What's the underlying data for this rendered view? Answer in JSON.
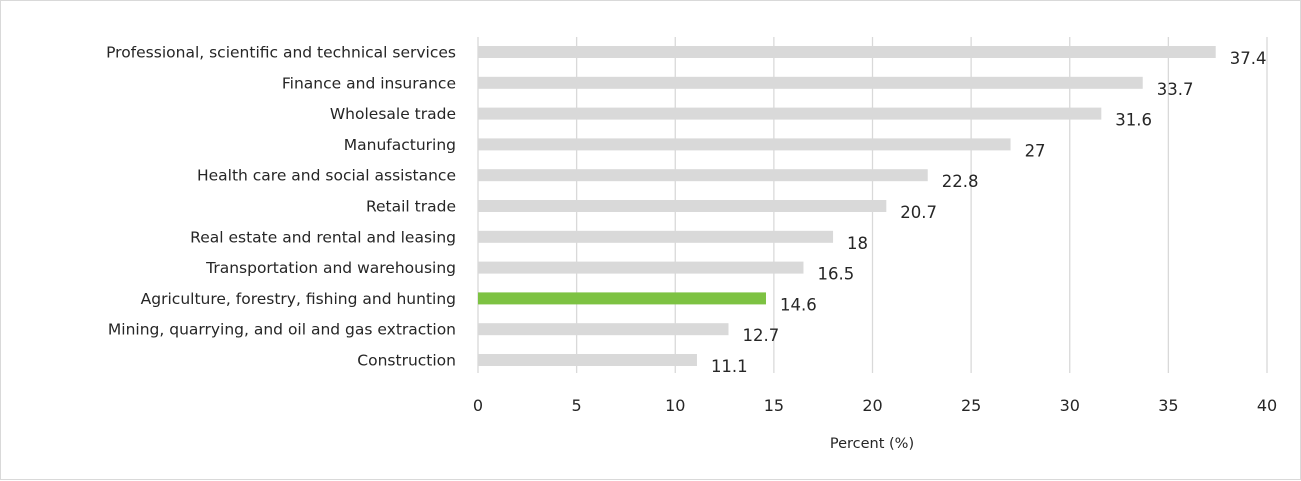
{
  "chart_data": {
    "type": "bar",
    "orientation": "horizontal",
    "categories": [
      "Professional, scientific and technical services",
      "Finance and insurance",
      "Wholesale trade",
      "Manufacturing",
      "Health care and social assistance",
      "Retail trade",
      "Real estate and rental and leasing",
      "Transportation and warehousing",
      "Agriculture, forestry, fishing and hunting",
      "Mining, quarrying, and oil and gas extraction",
      "Construction"
    ],
    "values": [
      37.4,
      33.7,
      31.6,
      27,
      22.8,
      20.7,
      18,
      16.5,
      14.6,
      12.7,
      11.1
    ],
    "data_labels": [
      "37.4",
      "33.7",
      "31.6",
      "27",
      "22.8",
      "20.7",
      "18",
      "16.5",
      "14.6",
      "12.7",
      "11.1"
    ],
    "highlight_category": "Agriculture, forestry, fishing and hunting",
    "bar_color": "#d9d9d9",
    "highlight_color": "#7dc242",
    "gridline_color": "#d9d9d9",
    "title": "",
    "xlabel": "Percent (%)",
    "ylabel": "",
    "xlim": [
      0,
      40
    ],
    "xticks": [
      0,
      5,
      10,
      15,
      20,
      25,
      30,
      35,
      40
    ],
    "xtick_labels": [
      "0",
      "5",
      "10",
      "15",
      "20",
      "25",
      "30",
      "35",
      "40"
    ],
    "grid": "vertical",
    "legend": "none"
  }
}
